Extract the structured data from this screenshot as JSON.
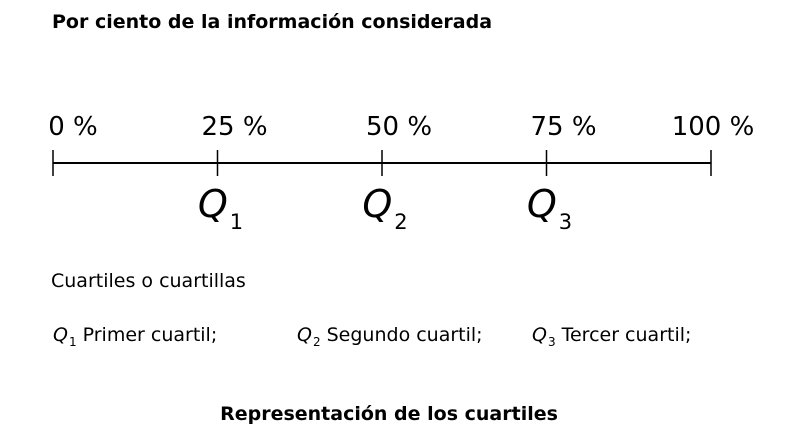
{
  "heading": "Por ciento de la información considerada",
  "scale": {
    "ticks": [
      {
        "label": "0 %",
        "value": 0
      },
      {
        "label": "25 %",
        "value": 25
      },
      {
        "label": "50 %",
        "value": 50
      },
      {
        "label": "75 %",
        "value": 75
      },
      {
        "label": "100 %",
        "value": 100
      }
    ],
    "quartiles": [
      {
        "symbol": "Q",
        "sub": "1",
        "value": 25
      },
      {
        "symbol": "Q",
        "sub": "2",
        "value": 50
      },
      {
        "symbol": "Q",
        "sub": "3",
        "value": 75
      }
    ]
  },
  "section_label": "Cuartiles o cuartillas",
  "legend": [
    {
      "symbol": "Q",
      "sub": "1",
      "text": "Primer cuartil;"
    },
    {
      "symbol": "Q",
      "sub": "2",
      "text": "Segundo cuartil;"
    },
    {
      "symbol": "Q",
      "sub": "3",
      "text": "Tercer cuartil;"
    }
  ],
  "footer_title": "Representación de los cuartiles"
}
